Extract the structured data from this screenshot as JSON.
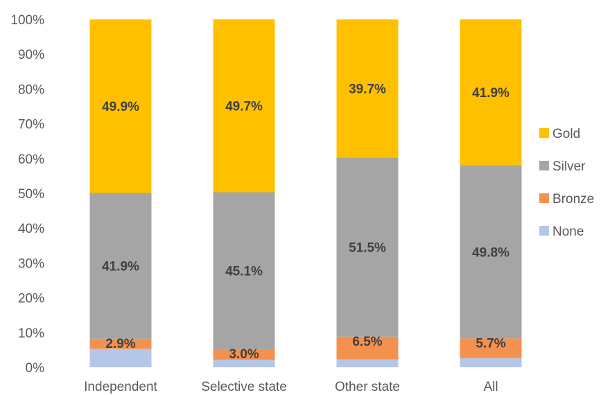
{
  "chart_data": {
    "type": "bar",
    "stacked": true,
    "percent_stacked": true,
    "title": "",
    "xlabel": "",
    "ylabel": "",
    "ylim": [
      0,
      100
    ],
    "yticks": [
      "0%",
      "10%",
      "20%",
      "30%",
      "40%",
      "50%",
      "60%",
      "70%",
      "80%",
      "90%",
      "100%"
    ],
    "grid": false,
    "legend_position": "right",
    "categories": [
      "Independent",
      "Selective state",
      "Other state",
      "All"
    ],
    "series": [
      {
        "name": "None",
        "color": "#b4c7e7",
        "values": [
          5.3,
          2.2,
          2.3,
          2.6
        ],
        "labels": [
          "",
          "",
          "",
          ""
        ]
      },
      {
        "name": "Bronze",
        "color": "#f4914f",
        "values": [
          2.9,
          3.0,
          6.5,
          5.7
        ],
        "labels": [
          "2.9%",
          "3.0%",
          "6.5%",
          "5.7%"
        ]
      },
      {
        "name": "Silver",
        "color": "#a5a5a5",
        "values": [
          41.9,
          45.1,
          51.5,
          49.8
        ],
        "labels": [
          "41.9%",
          "45.1%",
          "51.5%",
          "49.8%"
        ]
      },
      {
        "name": "Gold",
        "color": "#ffc000",
        "values": [
          49.9,
          49.7,
          39.7,
          41.9
        ],
        "labels": [
          "49.9%",
          "49.7%",
          "39.7%",
          "41.9%"
        ]
      }
    ],
    "legend_order": [
      "Gold",
      "Silver",
      "Bronze",
      "None"
    ]
  }
}
